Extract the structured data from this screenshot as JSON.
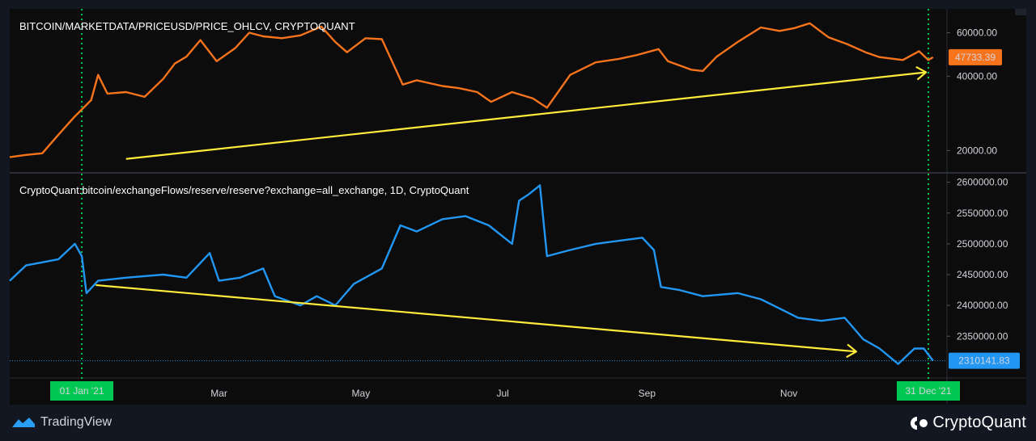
{
  "chart_data": [
    {
      "type": "line",
      "title": "BITCOIN/MARKETDATA/PRICEUSD/PRICE_OHLCV, CRYPTOQUANT",
      "series": [
        {
          "name": "BITCOIN/MARKETDATA/PRICEUSD/PRICE_OHLCV, CRYPTOQUANT",
          "color": "#f7731c",
          "x": [
            "2020-12-01",
            "2020-12-08",
            "2020-12-15",
            "2020-12-22",
            "2020-12-29",
            "2021-01-05",
            "2021-01-08",
            "2021-01-12",
            "2021-01-20",
            "2021-01-28",
            "2021-02-05",
            "2021-02-10",
            "2021-02-15",
            "2021-02-21",
            "2021-02-28",
            "2021-03-08",
            "2021-03-14",
            "2021-03-20",
            "2021-03-28",
            "2021-04-05",
            "2021-04-14",
            "2021-04-20",
            "2021-04-25",
            "2021-05-03",
            "2021-05-10",
            "2021-05-19",
            "2021-05-25",
            "2021-06-05",
            "2021-06-12",
            "2021-06-20",
            "2021-06-26",
            "2021-07-05",
            "2021-07-14",
            "2021-07-20",
            "2021-07-30",
            "2021-08-10",
            "2021-08-20",
            "2021-08-28",
            "2021-09-06",
            "2021-09-10",
            "2021-09-20",
            "2021-09-25",
            "2021-10-01",
            "2021-10-10",
            "2021-10-20",
            "2021-10-28",
            "2021-11-03",
            "2021-11-10",
            "2021-11-18",
            "2021-11-26",
            "2021-12-04",
            "2021-12-10",
            "2021-12-20",
            "2021-12-27",
            "2021-12-31",
            "2022-01-02"
          ],
          "values": [
            18800,
            19200,
            19500,
            23200,
            27500,
            32000,
            40500,
            34000,
            34500,
            33000,
            39000,
            45000,
            48000,
            56000,
            46000,
            52000,
            60000,
            58000,
            57000,
            58500,
            63500,
            55000,
            50000,
            57000,
            56500,
            37000,
            38500,
            36500,
            35800,
            34500,
            31500,
            34500,
            32500,
            29800,
            40500,
            45500,
            47000,
            48800,
            51500,
            46000,
            42500,
            42000,
            48000,
            55000,
            63000,
            61000,
            62500,
            65500,
            57500,
            54000,
            50000,
            47800,
            46500,
            50500,
            46500,
            47733.39
          ],
          "last_value_label": "47733.39"
        },
        {
          "name": "CryptoQuant:bitcoin/exchangeFlows/reserve/reserve?exchange=all_exchange, 1D, CryptoQuant",
          "color": "#2196f3",
          "x": [
            "2020-12-01",
            "2020-12-08",
            "2020-12-15",
            "2020-12-22",
            "2020-12-29",
            "2021-01-01",
            "2021-01-03",
            "2021-01-08",
            "2021-01-20",
            "2021-02-05",
            "2021-02-15",
            "2021-02-25",
            "2021-03-01",
            "2021-03-10",
            "2021-03-20",
            "2021-03-25",
            "2021-04-05",
            "2021-04-12",
            "2021-04-20",
            "2021-04-28",
            "2021-05-10",
            "2021-05-18",
            "2021-05-25",
            "2021-06-05",
            "2021-06-15",
            "2021-06-25",
            "2021-07-05",
            "2021-07-08",
            "2021-07-12",
            "2021-07-17",
            "2021-07-20",
            "2021-07-30",
            "2021-08-10",
            "2021-08-20",
            "2021-08-30",
            "2021-09-04",
            "2021-09-07",
            "2021-09-15",
            "2021-09-25",
            "2021-10-10",
            "2021-10-20",
            "2021-10-28",
            "2021-11-05",
            "2021-11-15",
            "2021-11-25",
            "2021-12-03",
            "2021-12-10",
            "2021-12-18",
            "2021-12-25",
            "2021-12-29",
            "2022-01-02"
          ],
          "values": [
            2440000,
            2465000,
            2470000,
            2475000,
            2500000,
            2480000,
            2420000,
            2440000,
            2445000,
            2450000,
            2445000,
            2485000,
            2440000,
            2445000,
            2460000,
            2415000,
            2400000,
            2415000,
            2400000,
            2435000,
            2460000,
            2530000,
            2520000,
            2540000,
            2545000,
            2530000,
            2500000,
            2570000,
            2580000,
            2595000,
            2480000,
            2490000,
            2500000,
            2505000,
            2510000,
            2490000,
            2430000,
            2425000,
            2415000,
            2420000,
            2410000,
            2395000,
            2380000,
            2375000,
            2380000,
            2345000,
            2330000,
            2305000,
            2330000,
            2330000,
            2310141.83
          ],
          "last_value_label": "2310141.83"
        }
      ],
      "panes": [
        {
          "label": "BITCOIN/MARKETDATA/PRICEUSD/PRICE_OHLCV, CRYPTOQUANT",
          "y_ticks": [
            "20000.00",
            "40000.00",
            "60000.00"
          ],
          "scale": "log",
          "ylim": [
            17000,
            70000
          ]
        },
        {
          "label": "CryptoQuant:bitcoin/exchangeFlows/reserve/reserve?exchange=all_exchange, 1D, CryptoQuant",
          "y_ticks": [
            "2350000.00",
            "2400000.00",
            "2450000.00",
            "2500000.00",
            "2550000.00",
            "2600000.00"
          ],
          "scale": "linear",
          "ylim": [
            2290000,
            2610000
          ]
        }
      ],
      "x_tick_labels": [
        "Mar",
        "May",
        "Jul",
        "Sep",
        "Nov"
      ],
      "x_range": [
        "2020-12-01",
        "2022-01-08"
      ],
      "markers": [
        {
          "date": "2021-01-01",
          "label": "01 Jan '21",
          "color": "#00c853"
        },
        {
          "date": "2021-12-31",
          "label": "31 Dec '21",
          "color": "#00c853"
        }
      ],
      "trend_arrows": [
        {
          "pane": 0,
          "from": {
            "date": "2021-01-20",
            "value": 18500
          },
          "to": {
            "date": "2021-12-30",
            "value": 41500
          },
          "color": "#ffeb3b"
        },
        {
          "pane": 1,
          "from": {
            "date": "2021-01-07",
            "value": 2433000
          },
          "to": {
            "date": "2021-11-30",
            "value": 2325000
          },
          "color": "#ffeb3b"
        }
      ],
      "grid": false,
      "legend": "top-left"
    }
  ],
  "footer": {
    "tradingview_label": "TradingView",
    "cryptoquant_label": "CryptoQuant"
  }
}
